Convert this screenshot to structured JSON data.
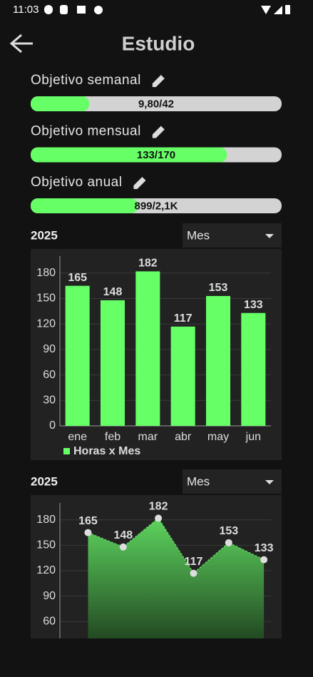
{
  "status_bar": {
    "time": "11:03"
  },
  "header": {
    "title": "Estudio"
  },
  "goals": [
    {
      "label": "Objetivo semanal",
      "progress_label": "9,80/42",
      "value": 9.8,
      "max": 42
    },
    {
      "label": "Objetivo mensual",
      "progress_label": "133/170",
      "value": 133,
      "max": 170
    },
    {
      "label": "Objetivo anual",
      "progress_label": "899/2,1K",
      "value": 899,
      "max": 2100
    }
  ],
  "chart_data": [
    {
      "type": "bar",
      "year": "2025",
      "dropdown": "Mes",
      "categories": [
        "ene",
        "feb",
        "mar",
        "abr",
        "may",
        "jun"
      ],
      "series": [
        {
          "name": "Horas x Mes",
          "color": "#66ff66",
          "values": [
            165,
            148,
            182,
            117,
            153,
            133
          ]
        }
      ],
      "ylim": [
        0,
        200
      ],
      "yticks": [
        0,
        30,
        60,
        90,
        120,
        150,
        180
      ],
      "grid": true,
      "legend": "bottom-left"
    },
    {
      "type": "area",
      "year": "2025",
      "dropdown": "Mes",
      "categories": [
        null,
        null,
        null,
        null,
        null,
        null
      ],
      "series": [
        {
          "name": null,
          "color": "#5ed45e",
          "values": [
            165,
            148,
            182,
            117,
            153,
            133
          ]
        }
      ],
      "ylim": [
        40,
        200
      ],
      "yticks": [
        60,
        90,
        120,
        150,
        180
      ],
      "grid": true
    }
  ]
}
